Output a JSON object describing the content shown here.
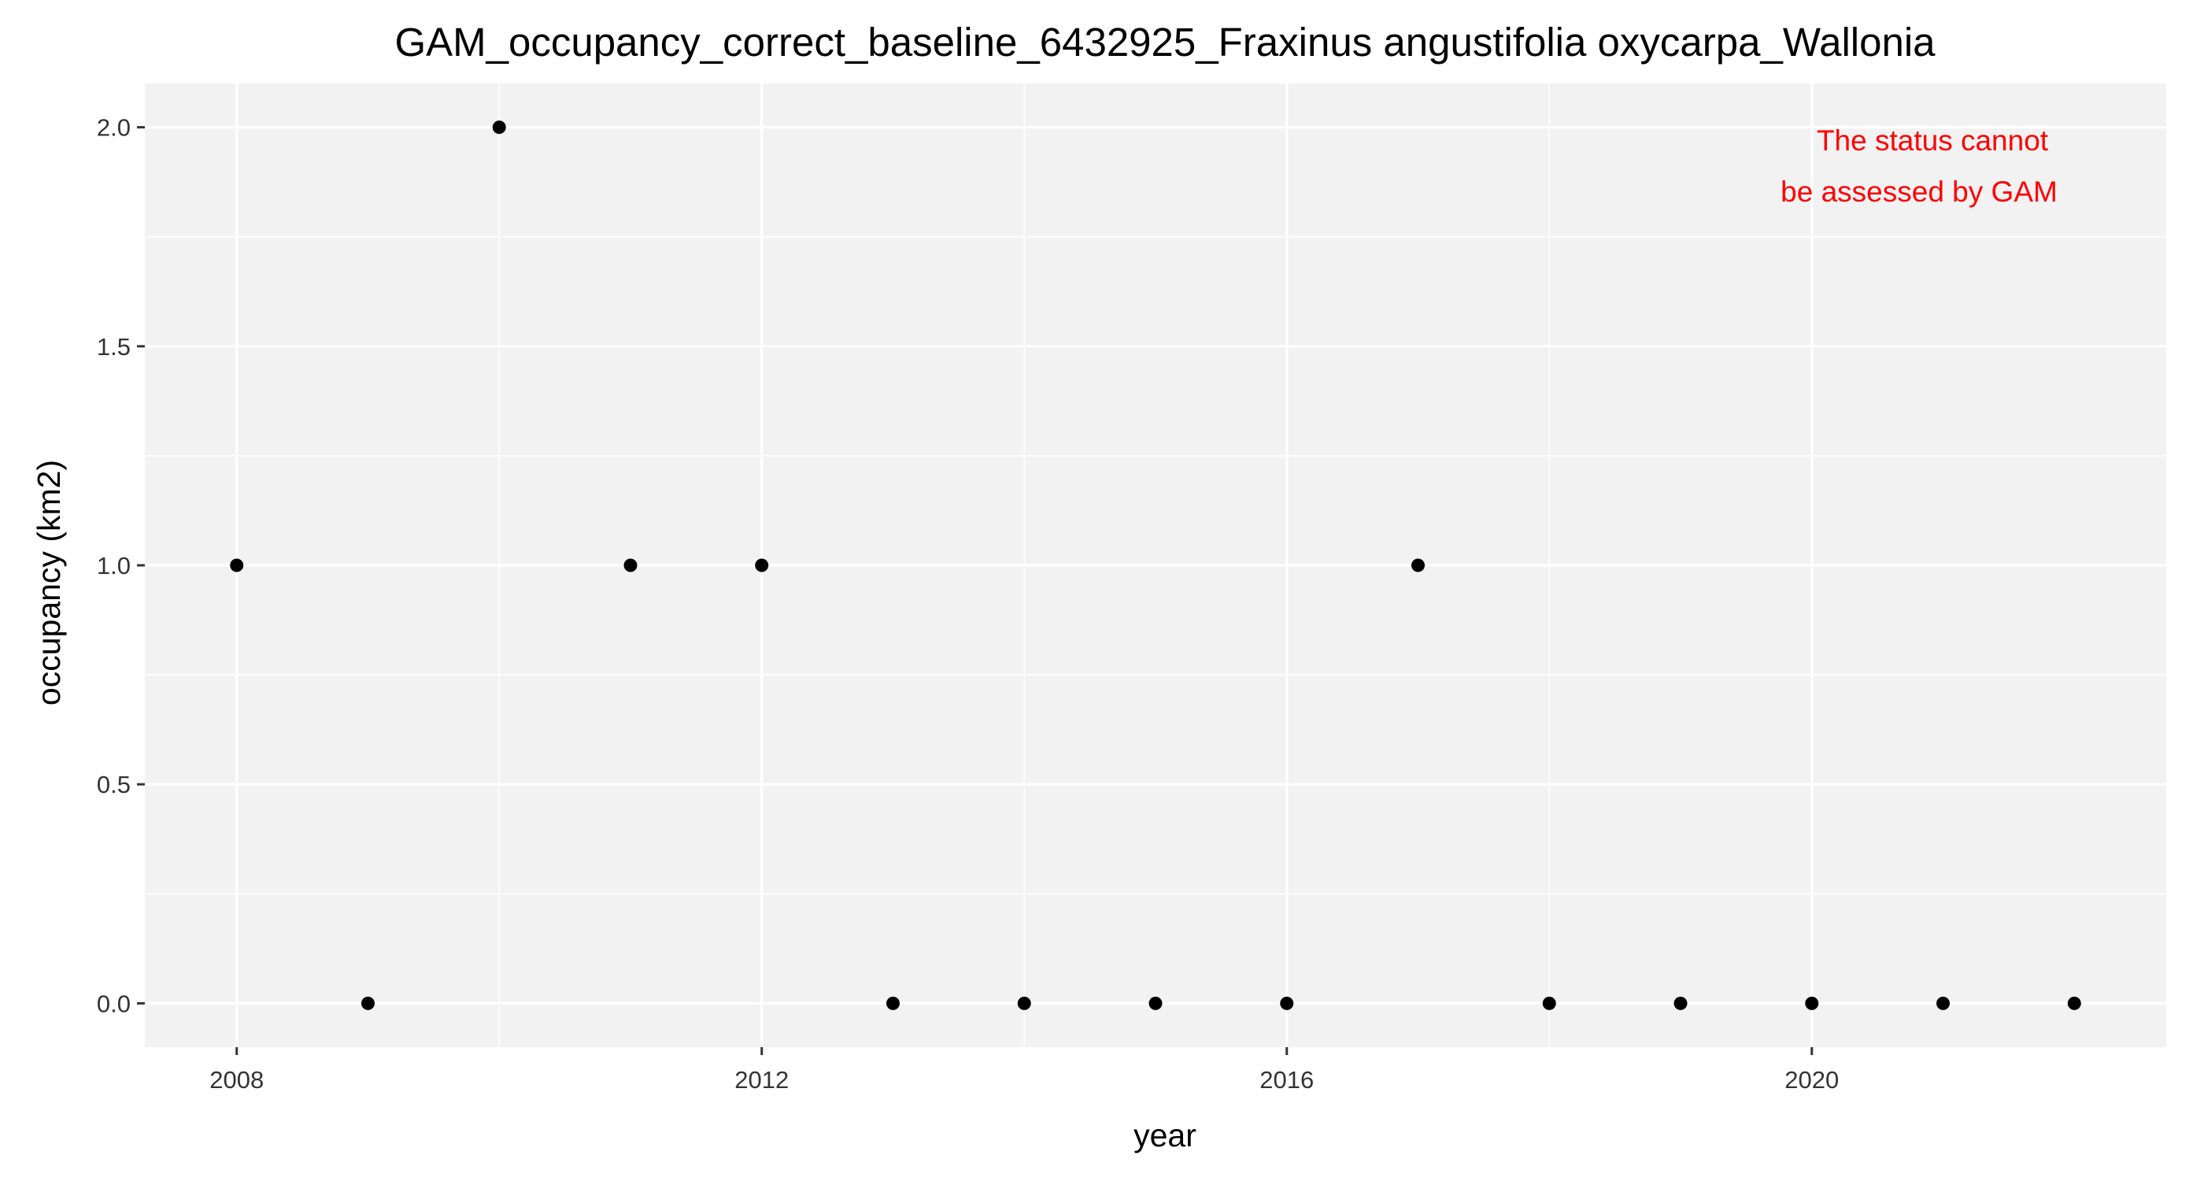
{
  "chart_data": {
    "type": "scatter",
    "title": "GAM_occupancy_correct_baseline_6432925_Fraxinus angustifolia oxycarpa_Wallonia",
    "xlabel": "year",
    "ylabel": "occupancy (km2)",
    "x": [
      2008,
      2009,
      2010,
      2011,
      2012,
      2013,
      2014,
      2015,
      2016,
      2017,
      2018,
      2019,
      2020,
      2021,
      2022
    ],
    "y": [
      1,
      0,
      2,
      1,
      1,
      0,
      0,
      0,
      0,
      1,
      0,
      0,
      0,
      0,
      0
    ],
    "xlim": [
      2007.3,
      2022.7
    ],
    "ylim": [
      -0.1,
      2.1
    ],
    "x_ticks": [
      2008,
      2012,
      2016,
      2020
    ],
    "x_tick_labels": [
      "2008",
      "2012",
      "2016",
      "2020"
    ],
    "y_ticks": [
      0,
      0.5,
      1,
      1.5,
      2
    ],
    "y_tick_labels": [
      "0.0",
      "0.5",
      "1.0",
      "1.5",
      "2.0"
    ],
    "grid": true,
    "legend": false,
    "annotation": {
      "lines": [
        "The status cannot",
        "be assessed by GAM"
      ],
      "color": "#ff0000",
      "placement": "top-right"
    },
    "colors": {
      "panel_background": "#f2f2f2",
      "grid": "#ffffff",
      "points": "#000000"
    }
  }
}
